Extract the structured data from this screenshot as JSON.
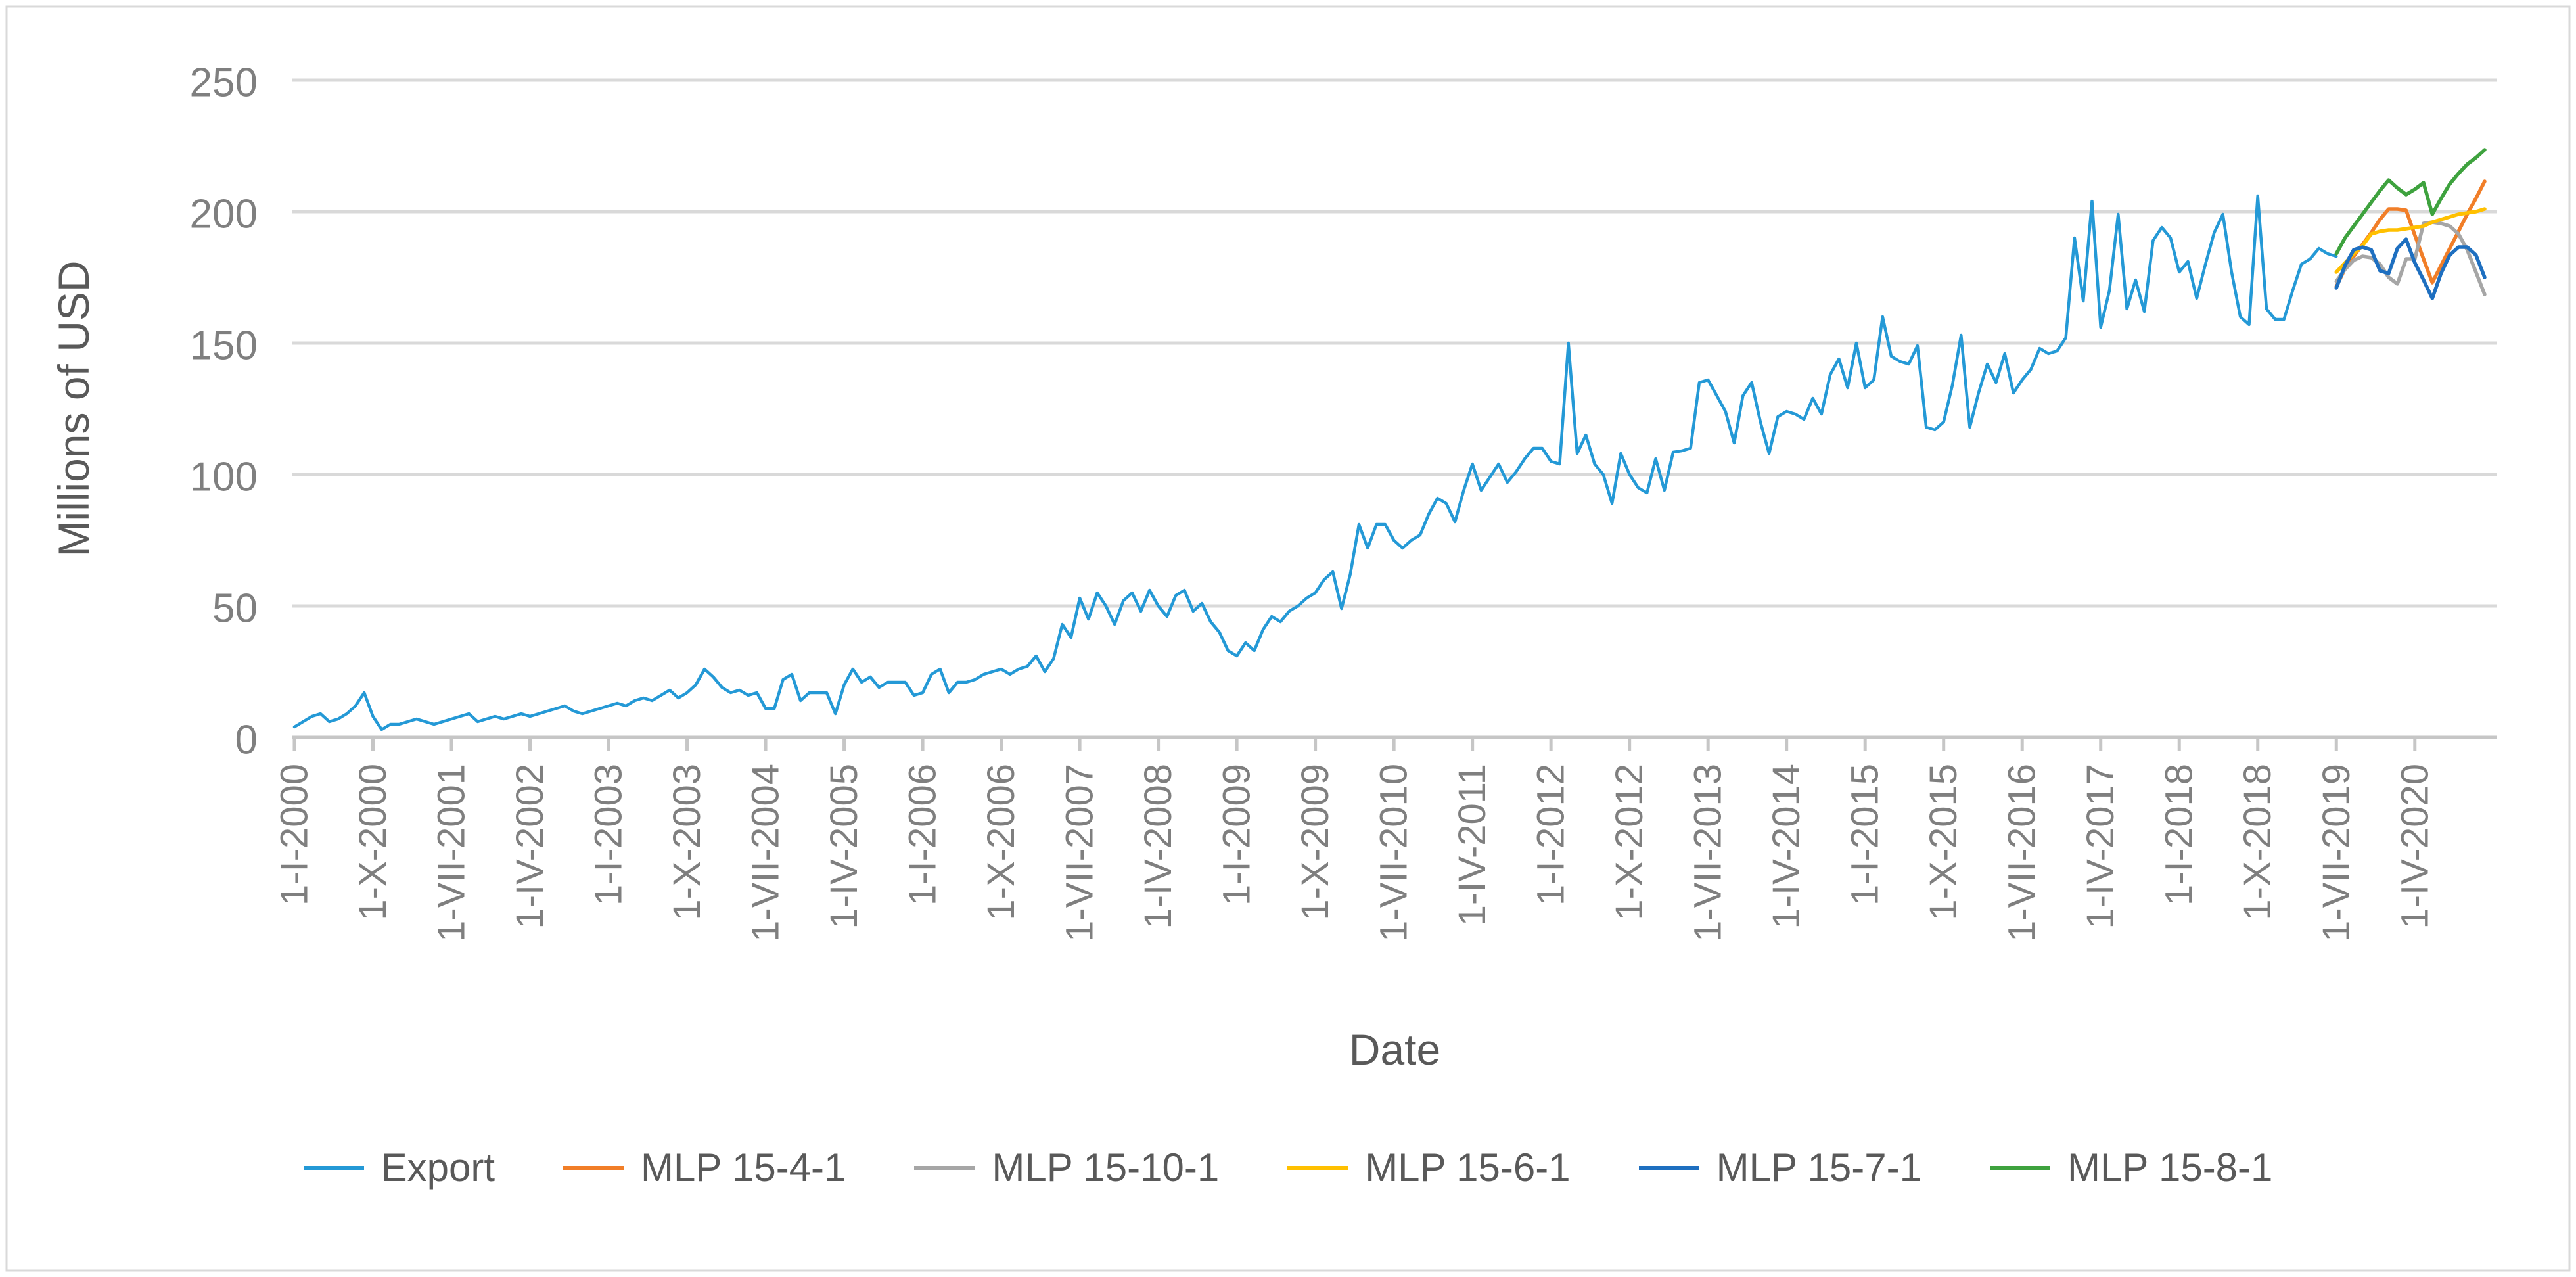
{
  "frame": {
    "border_color": "#d9d9d9",
    "background": "#ffffff"
  },
  "axes": {
    "y_title": "Millions of USD",
    "x_title": "Date",
    "tick_color": "#7f7f7f",
    "gridline_color": "#d9d9d9",
    "axisline_color": "#c6c6c6"
  },
  "chart_data": {
    "type": "line",
    "title": "",
    "xlabel": "Date",
    "ylabel": "Millions of USD",
    "ylim": [
      0,
      250
    ],
    "yticks": [
      0,
      50,
      100,
      150,
      200,
      250
    ],
    "grid": "horizontal",
    "legend_position": "bottom",
    "x_unit": "months from Jan 2000 (index 0) to Dec 2020 (index 251)",
    "x_tick_indices": [
      0,
      9,
      18,
      27,
      36,
      45,
      54,
      63,
      72,
      81,
      90,
      99,
      108,
      117,
      126,
      135,
      144,
      153,
      162,
      171,
      180,
      189,
      198,
      207,
      216,
      225,
      234,
      243
    ],
    "x_tick_labels": [
      "1-I-2000",
      "1-X-2000",
      "1-VII-2001",
      "1-IV-2002",
      "1-I-2003",
      "1-X-2003",
      "1-VII-2004",
      "1-IV-2005",
      "1-I-2006",
      "1-X-2006",
      "1-VII-2007",
      "1-IV-2008",
      "1-I-2009",
      "1-X-2009",
      "1-VII-2010",
      "1-IV-2011",
      "1-I-2012",
      "1-X-2012",
      "1-VII-2013",
      "1-IV-2014",
      "1-I-2015",
      "1-X-2015",
      "1-VII-2016",
      "1-IV-2017",
      "1-I-2018",
      "1-X-2018",
      "1-VII-2019",
      "1-IV-2020"
    ],
    "series": [
      {
        "name": "Export",
        "color": "#2499d6",
        "width": 4.5,
        "start_index": 0,
        "values": [
          4,
          6,
          8,
          9,
          6,
          7,
          9,
          12,
          17,
          8,
          3,
          5,
          5,
          6,
          7,
          6,
          5,
          6,
          7,
          8,
          9,
          6,
          7,
          8,
          7,
          8,
          9,
          8,
          9,
          10,
          11,
          12,
          10,
          9,
          10,
          11,
          12,
          13,
          12,
          14,
          15,
          14,
          16,
          18,
          15,
          17,
          20,
          26,
          23,
          19,
          17,
          18,
          16,
          17,
          11,
          11,
          22,
          24,
          14,
          17,
          17,
          17,
          9,
          20,
          26,
          21,
          23,
          19,
          21,
          21,
          21,
          16,
          17,
          24,
          26,
          17,
          21,
          21,
          22,
          24,
          25,
          26,
          24,
          26,
          27,
          31,
          25,
          30,
          43,
          38,
          53,
          45,
          55,
          50,
          43,
          52,
          55,
          48,
          56,
          50,
          46,
          54,
          56,
          48,
          51,
          44,
          40,
          33,
          31,
          36,
          33,
          41,
          46,
          44,
          48,
          50,
          53,
          55,
          60,
          63,
          49,
          62,
          81,
          72,
          81,
          81,
          75,
          72,
          75,
          77,
          85,
          91,
          89,
          82,
          94,
          104,
          94,
          99,
          104,
          97,
          101,
          106,
          110,
          110,
          105,
          104,
          150,
          108,
          115,
          104,
          100,
          89,
          108,
          100,
          95,
          93,
          106,
          94,
          108.5,
          109,
          110,
          135,
          136,
          130,
          124,
          112,
          130,
          135,
          120,
          108,
          122,
          124,
          123,
          121,
          129,
          123,
          138,
          144,
          133,
          150,
          133,
          136,
          160,
          145,
          143,
          142,
          149,
          118,
          117,
          120,
          134,
          153,
          118,
          131,
          142,
          135,
          146,
          131,
          136,
          140,
          148,
          146,
          147,
          152,
          190,
          166,
          204,
          156,
          170,
          199,
          163,
          174,
          162,
          189,
          194,
          190,
          177,
          181,
          167,
          180,
          192,
          199,
          177,
          160,
          157,
          206,
          163,
          159,
          159,
          170,
          180,
          182,
          186,
          184,
          183
        ]
      },
      {
        "name": "MLP 15-4-1",
        "color": "#f17e28",
        "width": 5.5,
        "start_index": 234,
        "values": [
          171.5,
          178.3,
          183,
          187.5,
          192,
          197,
          201,
          201,
          200.5,
          191,
          182,
          173,
          179.5,
          186,
          192.5,
          199,
          205,
          211.5
        ]
      },
      {
        "name": "MLP 15-10-1",
        "color": "#a6a6a6",
        "width": 5.5,
        "start_index": 234,
        "values": [
          173.5,
          178,
          181.5,
          183,
          182.5,
          180,
          175,
          172.5,
          182,
          182,
          195.5,
          196,
          195.5,
          194.5,
          191.5,
          185.5,
          177,
          168.5
        ]
      },
      {
        "name": "MLP 15-6-1",
        "color": "#ffc000",
        "width": 5.5,
        "start_index": 234,
        "values": [
          177,
          180.5,
          184,
          187,
          191.5,
          192.5,
          193,
          193,
          193.5,
          194,
          194.5,
          196,
          197,
          198,
          199,
          199.5,
          200,
          201
        ]
      },
      {
        "name": "MLP 15-7-1",
        "color": "#1e6fc0",
        "width": 5.5,
        "start_index": 234,
        "values": [
          171,
          179.5,
          185.5,
          186.5,
          185.5,
          177.5,
          176.5,
          186,
          189.5,
          180.5,
          174,
          167,
          176.5,
          183.5,
          186.5,
          186.5,
          183.5,
          175
        ]
      },
      {
        "name": "MLP 15-8-1",
        "color": "#3ea23e",
        "width": 5.5,
        "start_index": 234,
        "values": [
          184,
          190,
          194.5,
          199,
          203.5,
          208,
          212,
          209,
          206.5,
          208.5,
          211,
          199,
          205,
          210.5,
          214.5,
          218,
          220.5,
          223.5
        ]
      }
    ]
  },
  "legend": {
    "items": [
      {
        "label": "Export",
        "color": "#2499d6"
      },
      {
        "label": "MLP 15-4-1",
        "color": "#f17e28"
      },
      {
        "label": "MLP 15-10-1",
        "color": "#a6a6a6"
      },
      {
        "label": "MLP 15-6-1",
        "color": "#ffc000"
      },
      {
        "label": "MLP 15-7-1",
        "color": "#1e6fc0"
      },
      {
        "label": "MLP 15-8-1",
        "color": "#3ea23e"
      }
    ]
  }
}
